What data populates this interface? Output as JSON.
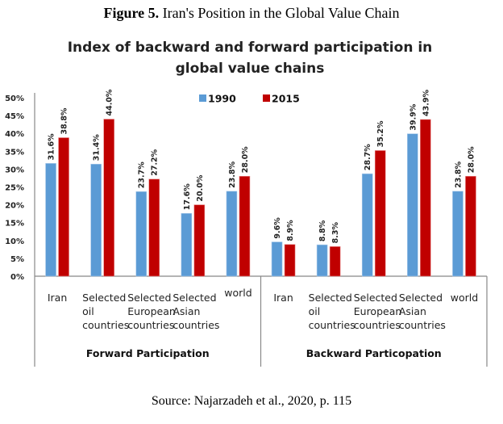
{
  "figure_caption": {
    "label": "Figure 5.",
    "text": " Iran's Position in the Global Value Chain"
  },
  "source": "Source: Najarzadeh et al., 2020, p. 115",
  "chart_data": {
    "type": "bar",
    "title": "Index of backward and forward participation in global value chains",
    "title_lines": [
      "Index of backward and forward participation in",
      "global value chains"
    ],
    "xlabel": "",
    "ylabel": "",
    "ylim": [
      0,
      50
    ],
    "yticks": [
      0,
      5,
      10,
      15,
      20,
      25,
      30,
      35,
      40,
      45,
      50
    ],
    "ytick_format": "%",
    "grid": false,
    "legend": {
      "placement": "top-center",
      "entries": [
        "1990",
        "2015"
      ]
    },
    "colors": {
      "1990": "#5B9BD5",
      "2015": "#C00000"
    },
    "groups": [
      {
        "name": "Forward  Participation",
        "categories": [
          [
            "Iran"
          ],
          [
            "Selected",
            "oil",
            "countries"
          ],
          [
            "Selected",
            "European",
            "countries"
          ],
          [
            "Selected",
            "Asian",
            "countries"
          ],
          [
            "world"
          ]
        ],
        "series": [
          {
            "name": "1990",
            "values": [
              31.6,
              31.4,
              23.7,
              17.6,
              23.8
            ]
          },
          {
            "name": "2015",
            "values": [
              38.8,
              44.0,
              27.2,
              20.0,
              28.0
            ]
          }
        ]
      },
      {
        "name": "Backward Particopation",
        "categories": [
          [
            "Iran"
          ],
          [
            "Selected",
            "oil",
            "countries"
          ],
          [
            "Selected",
            "European",
            "countries"
          ],
          [
            "Selected",
            "Asian",
            "countries"
          ],
          [
            "world"
          ]
        ],
        "series": [
          {
            "name": "1990",
            "values": [
              9.6,
              8.8,
              28.7,
              39.9,
              23.8
            ]
          },
          {
            "name": "2015",
            "values": [
              8.9,
              8.3,
              35.2,
              43.9,
              28.0
            ]
          }
        ]
      }
    ]
  }
}
